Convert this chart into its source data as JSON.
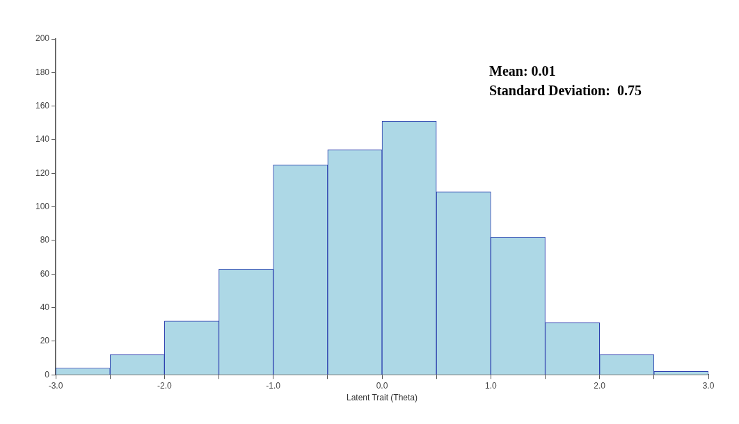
{
  "chart_data": {
    "type": "histogram",
    "xlabel": "Latent Trait (Theta)",
    "bins": [
      -3.0,
      -2.5,
      -2.0,
      -1.5,
      -1.0,
      -0.5,
      0.0,
      0.5,
      1.0,
      1.5,
      2.0,
      2.5,
      3.0
    ],
    "values": [
      4,
      12,
      32,
      63,
      125,
      134,
      151,
      109,
      82,
      31,
      12,
      2
    ],
    "color": "#add8e6",
    "xlim": [
      -3.0,
      3.0
    ],
    "xticks": [
      {
        "value": -3.0,
        "label": "-3.0"
      },
      {
        "value": -2.5,
        "label": null
      },
      {
        "value": -2.0,
        "label": "-2.0"
      },
      {
        "value": -1.5,
        "label": null
      },
      {
        "value": -1.0,
        "label": "-1.0"
      },
      {
        "value": -0.5,
        "label": null
      },
      {
        "value": 0.0,
        "label": "0.0"
      },
      {
        "value": 0.5,
        "label": null
      },
      {
        "value": 1.0,
        "label": "1.0"
      },
      {
        "value": 1.5,
        "label": null
      },
      {
        "value": 2.0,
        "label": "2.0"
      },
      {
        "value": 2.5,
        "label": null
      },
      {
        "value": 3.0,
        "label": "3.0"
      }
    ],
    "ylim": [
      0,
      200
    ],
    "yticks": [
      0,
      20,
      40,
      60,
      80,
      100,
      120,
      140,
      160,
      180,
      200
    ],
    "grid": false,
    "legend": false,
    "annotations": [
      "Mean: 0.01",
      "Standard Deviation:  0.75"
    ]
  }
}
